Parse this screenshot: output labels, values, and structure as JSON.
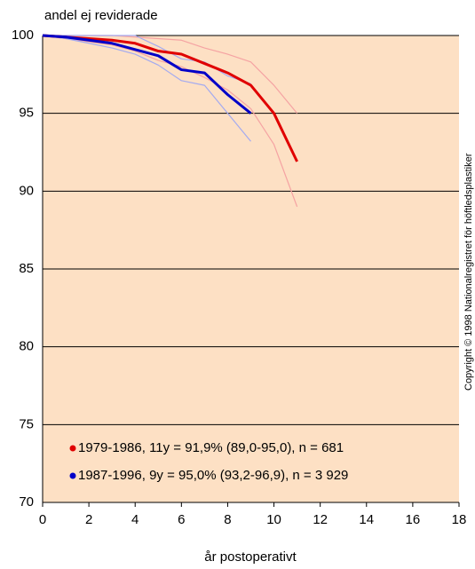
{
  "chart_data": {
    "type": "line",
    "y_label": "andel ej reviderade",
    "x_label": "år postoperativt",
    "copyright": "Copyright © 1998 Nationalregistret för höftledsplastiker",
    "x": [
      0,
      1,
      2,
      3,
      4,
      5,
      6,
      7,
      8,
      9,
      10,
      11
    ],
    "series": [
      {
        "name": "1979-1986, 11y =  91,9% (89,0-95,0), n = 681",
        "color": "#e00000",
        "band_color": "#f5a3a3",
        "values": [
          100,
          99.9,
          99.8,
          99.7,
          99.5,
          99.0,
          98.8,
          98.2,
          97.6,
          96.8,
          95.0,
          91.9
        ],
        "upper": [
          100,
          100,
          100,
          100,
          99.9,
          99.8,
          99.7,
          99.2,
          98.8,
          98.3,
          96.8,
          95.0
        ],
        "lower": [
          100,
          99.8,
          99.6,
          99.4,
          99.0,
          98.4,
          98.0,
          97.3,
          96.5,
          95.3,
          93.0,
          89.0
        ]
      },
      {
        "name": "1987-1996,  9y =  95,0% (93,2-96,9), n = 3 929",
        "color": "#0000c8",
        "band_color": "#a3aaf0",
        "values": [
          100,
          99.9,
          99.7,
          99.5,
          99.1,
          98.7,
          97.8,
          97.6,
          96.2,
          95.0,
          null,
          null
        ],
        "upper": [
          100,
          100,
          100,
          100,
          100,
          99.3,
          98.5,
          98.3,
          97.4,
          96.9,
          null,
          null
        ],
        "lower": [
          100,
          99.8,
          99.5,
          99.2,
          98.8,
          98.1,
          97.1,
          96.8,
          95.0,
          93.2,
          null,
          null
        ]
      }
    ],
    "xlim": [
      0,
      18
    ],
    "xticks": [
      0,
      2,
      4,
      6,
      8,
      10,
      12,
      14,
      16,
      18
    ],
    "ylim": [
      70,
      100
    ],
    "yticks": [
      70,
      75,
      80,
      85,
      90,
      95,
      100
    ],
    "grid": true,
    "background": "#fde0c4",
    "legend": "lower left"
  }
}
